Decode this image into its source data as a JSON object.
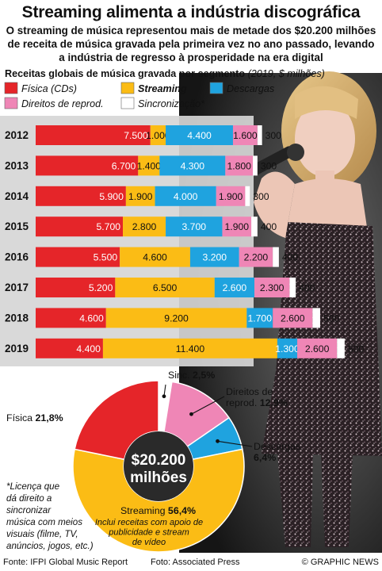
{
  "title": "Streaming alimenta a indústria discográfica",
  "subtitle_lines": [
    "O streaming de música representou mais de metade dos $20.200 milhões",
    "de receita de música gravada pela primeira vez no ano passado, levando",
    "a indústria de regresso à prosperidade na era digital"
  ],
  "chart_heading": "Receitas globais de música gravada por segmento",
  "chart_heading_unit": "(2019, $ milhões)",
  "legend": [
    {
      "label": "Física (CDs)",
      "color": "#e52529",
      "italic": true,
      "bold": false
    },
    {
      "label": "Streaming",
      "color": "#fbbc15",
      "italic": true,
      "bold": true
    },
    {
      "label": "Descargas",
      "color": "#1fa3df",
      "italic": true,
      "bold": false
    },
    {
      "label": "Direitos de reprod.",
      "color": "#ef86b6",
      "italic": true,
      "bold": false
    },
    {
      "label": "Sincronização*",
      "color": "#ffffff",
      "italic": true,
      "bold": false
    }
  ],
  "chart_data": [
    {
      "type": "bar",
      "orientation": "horizontal",
      "stacked": true,
      "categories": [
        "2012",
        "2013",
        "2014",
        "2015",
        "2016",
        "2017",
        "2018",
        "2019"
      ],
      "series": [
        {
          "name": "Física (CDs)",
          "color": "#e52529",
          "values": [
            7500,
            6700,
            5900,
            5700,
            5500,
            5200,
            4600,
            4400
          ],
          "labels": [
            "7.500",
            "6.700",
            "5.900",
            "5.700",
            "5.500",
            "5.200",
            "4.600",
            "4.400"
          ]
        },
        {
          "name": "Streaming",
          "color": "#fbbc15",
          "values": [
            1000,
            1400,
            1900,
            2800,
            4600,
            6500,
            9200,
            11400
          ],
          "labels": [
            "1.000",
            "1.400",
            "1.900",
            "2.800",
            "4.600",
            "6.500",
            "9.200",
            "11.400"
          ]
        },
        {
          "name": "Descargas",
          "color": "#1fa3df",
          "values": [
            4400,
            4300,
            4000,
            3700,
            3200,
            2600,
            1700,
            1300
          ],
          "labels": [
            "4.400",
            "4.300",
            "4.000",
            "3.700",
            "3.200",
            "2.600",
            "1.700",
            "1.300"
          ]
        },
        {
          "name": "Direitos de reprod.",
          "color": "#ef86b6",
          "values": [
            1600,
            1800,
            1900,
            1900,
            2200,
            2300,
            2600,
            2600
          ],
          "labels": [
            "1.600",
            "1.800",
            "1.900",
            "1.900",
            "2.200",
            "2.300",
            "2.600",
            "2.600"
          ]
        },
        {
          "name": "Sincronização*",
          "color": "#ffffff",
          "values": [
            300,
            300,
            300,
            400,
            400,
            400,
            500,
            500
          ],
          "labels": [
            "300",
            "300",
            "300",
            "400",
            "400",
            "400",
            "500",
            "500"
          ]
        }
      ]
    },
    {
      "type": "pie",
      "donut": true,
      "center_label": [
        "$20.200",
        "milhões"
      ],
      "slices": [
        {
          "name": "Sinc.",
          "value": 2.5,
          "label": "2,5%",
          "color": "#ffffff"
        },
        {
          "name": "Direitos de reprod.",
          "value": 12.9,
          "label": "12,9%",
          "color": "#ef86b6"
        },
        {
          "name": "Descargas",
          "value": 6.4,
          "label": "6,4%",
          "color": "#1fa3df"
        },
        {
          "name": "Streaming",
          "value": 56.4,
          "label": "56,4%",
          "color": "#fbbc15"
        },
        {
          "name": "Física",
          "value": 21.8,
          "label": "21,8%",
          "color": "#e52529"
        }
      ],
      "annotation": [
        "Inclui receitas com apoio de",
        "publicidade e stream",
        "de vídeo"
      ]
    }
  ],
  "footnote": [
    "*Licença que",
    "dá direito a",
    "sincronizar",
    "música com meios",
    "visuais (filme, TV,",
    "anúncios, jogos, etc.)"
  ],
  "source": "Fonte: IFPI Global Music Report",
  "photo_credit": "Foto: Associated Press",
  "publisher": "© GRAPHIC NEWS"
}
